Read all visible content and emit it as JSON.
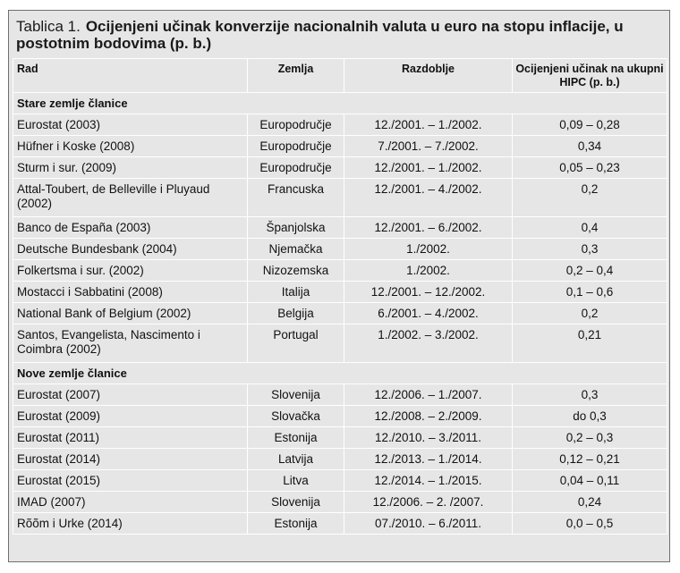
{
  "title": {
    "label": "Tablica 1.",
    "text": "Ocijenjeni učinak konverzije nacionalnih valuta u euro na stopu inflacije, u postotnim bodovima (p. b.)"
  },
  "headers": {
    "rad": "Rad",
    "zemlja": "Zemlja",
    "razdoblje": "Razdoblje",
    "ucinak": "Ocijenjeni učinak na ukupni HIPC (p. b.)"
  },
  "sections": [
    {
      "title": "Stare zemlje članice",
      "rows": [
        {
          "rad": "Eurostat (2003)",
          "zemlja": "Europodručje",
          "razdoblje": "12./2001. – 1./2002.",
          "ucinak": "0,09 – 0,28"
        },
        {
          "rad": "Hüfner i Koske (2008)",
          "zemlja": "Europodručje",
          "razdoblje": "7./2001. – 7./2002.",
          "ucinak": "0,34"
        },
        {
          "rad": "Sturm i sur. (2009)",
          "zemlja": "Europodručje",
          "razdoblje": "12./2001. – 1./2002.",
          "ucinak": "0,05 – 0,23"
        },
        {
          "rad": "Attal-Toubert, de Belleville i Pluyaud (2002)",
          "zemlja": "Francuska",
          "razdoblje": "12./2001. – 4./2002.",
          "ucinak": "0,2"
        },
        {
          "rad": "Banco de España (2003)",
          "zemlja": "Španjolska",
          "razdoblje": "12./2001. – 6./2002.",
          "ucinak": "0,4"
        },
        {
          "rad": "Deutsche Bundesbank (2004)",
          "zemlja": "Njemačka",
          "razdoblje": "1./2002.",
          "ucinak": "0,3"
        },
        {
          "rad": "Folkertsma i sur. (2002)",
          "zemlja": "Nizozemska",
          "razdoblje": "1./2002.",
          "ucinak": "0,2 – 0,4"
        },
        {
          "rad": "Mostacci i Sabbatini (2008)",
          "zemlja": "Italija",
          "razdoblje": "12./2001. – 12./2002.",
          "ucinak": "0,1 – 0,6"
        },
        {
          "rad": "National Bank of Belgium (2002)",
          "zemlja": "Belgija",
          "razdoblje": "6./2001. – 4./2002.",
          "ucinak": "0,2"
        },
        {
          "rad": "Santos, Evangelista, Nascimento i Coimbra (2002)",
          "zemlja": "Portugal",
          "razdoblje": "1./2002. – 3./2002.",
          "ucinak": "0,21"
        }
      ]
    },
    {
      "title": "Nove zemlje članice",
      "rows": [
        {
          "rad": "Eurostat (2007)",
          "zemlja": "Slovenija",
          "razdoblje": "12./2006. – 1./2007.",
          "ucinak": "0,3"
        },
        {
          "rad": "Eurostat (2009)",
          "zemlja": "Slovačka",
          "razdoblje": "12./2008. – 2./2009.",
          "ucinak": "do 0,3"
        },
        {
          "rad": "Eurostat (2011)",
          "zemlja": "Estonija",
          "razdoblje": "12./2010. – 3./2011.",
          "ucinak": "0,2 – 0,3"
        },
        {
          "rad": "Eurostat (2014)",
          "zemlja": "Latvija",
          "razdoblje": "12./2013. – 1./2014.",
          "ucinak": "0,12 – 0,21"
        },
        {
          "rad": "Eurostat (2015)",
          "zemlja": "Litva",
          "razdoblje": "12./2014. – 1./2015.",
          "ucinak": "0,04 – 0,11"
        },
        {
          "rad": "IMAD (2007)",
          "zemlja": "Slovenija",
          "razdoblje": "12./2006. – 2. /2007.",
          "ucinak": "0,24"
        },
        {
          "rad": "Rõõm i Urke (2014)",
          "zemlja": "Estonija",
          "razdoblje": "07./2010. – 6./2011.",
          "ucinak": "0,0 – 0,5"
        }
      ]
    }
  ]
}
